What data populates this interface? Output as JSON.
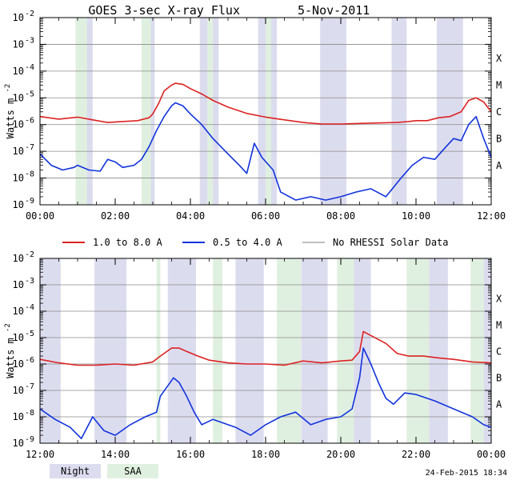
{
  "title": "GOES 3-sec X-ray Flux",
  "date": "5-Nov-2011",
  "footer_timestamp": "24-Feb-2015 18:34",
  "ylabel": "Watts m",
  "ylabel_exp": "-2",
  "legend": {
    "long": "1.0 to 8.0 A",
    "short": "0.5 to 4.0 A",
    "rhessi": "No RHESSI Solar Data"
  },
  "shade_legend": {
    "night": "Night",
    "saa": "SAA"
  },
  "colors": {
    "long": "#dd2222",
    "short": "#1133dd",
    "rhessi": "#999999",
    "night": "#dcdcef",
    "saa": "#e0f0e0",
    "grid": "#8a8a8a"
  },
  "chart_data": [
    {
      "type": "line",
      "x_unit": "hours UT",
      "xlim": [
        0,
        12
      ],
      "ylim": [
        1e-09,
        0.01
      ],
      "yscale": "log",
      "x_tick_labels": [
        "00:00",
        "02:00",
        "04:00",
        "06:00",
        "08:00",
        "10:00",
        "12:00"
      ],
      "y_tick_exponents": [
        "-9",
        "-8",
        "-7",
        "-6",
        "-5",
        "-4",
        "-3",
        "-2"
      ],
      "class_labels": [
        "A",
        "B",
        "C",
        "M",
        "X"
      ],
      "grid": "horizontal",
      "night_intervals": [
        [
          0.95,
          1.4
        ],
        [
          2.7,
          3.05
        ],
        [
          4.25,
          4.75
        ],
        [
          5.8,
          6.3
        ],
        [
          7.45,
          8.15
        ],
        [
          9.35,
          9.75
        ],
        [
          10.55,
          11.25
        ]
      ],
      "saa_intervals": [
        [
          0.95,
          1.25
        ],
        [
          2.7,
          2.95
        ],
        [
          4.45,
          4.6
        ],
        [
          6.0,
          6.15
        ]
      ],
      "series": [
        {
          "key": "long",
          "points": [
            [
              0,
              2e-06
            ],
            [
              0.5,
              1.6e-06
            ],
            [
              1.0,
              1.9e-06
            ],
            [
              1.4,
              1.5e-06
            ],
            [
              1.8,
              1.2e-06
            ],
            [
              2.2,
              1.3e-06
            ],
            [
              2.6,
              1.4e-06
            ],
            [
              2.9,
              1.8e-06
            ],
            [
              3.0,
              2.5e-06
            ],
            [
              3.15,
              6e-06
            ],
            [
              3.3,
              1.8e-05
            ],
            [
              3.5,
              3e-05
            ],
            [
              3.6,
              3.5e-05
            ],
            [
              3.8,
              3.2e-05
            ],
            [
              4.0,
              2.2e-05
            ],
            [
              4.3,
              1.4e-05
            ],
            [
              4.6,
              8e-06
            ],
            [
              5.0,
              4.5e-06
            ],
            [
              5.5,
              2.6e-06
            ],
            [
              6.0,
              1.9e-06
            ],
            [
              6.5,
              1.5e-06
            ],
            [
              7.0,
              1.2e-06
            ],
            [
              7.5,
              1.05e-06
            ],
            [
              8.0,
              1.05e-06
            ],
            [
              8.5,
              1.1e-06
            ],
            [
              9.0,
              1.15e-06
            ],
            [
              9.5,
              1.2e-06
            ],
            [
              9.8,
              1.3e-06
            ],
            [
              10.0,
              1.4e-06
            ],
            [
              10.3,
              1.4e-06
            ],
            [
              10.6,
              1.8e-06
            ],
            [
              10.9,
              2e-06
            ],
            [
              11.2,
              3e-06
            ],
            [
              11.4,
              8e-06
            ],
            [
              11.6,
              1e-05
            ],
            [
              11.8,
              7e-06
            ],
            [
              12.0,
              3e-06
            ]
          ]
        },
        {
          "key": "short",
          "points": [
            [
              0,
              8e-08
            ],
            [
              0.3,
              3e-08
            ],
            [
              0.6,
              2e-08
            ],
            [
              0.9,
              2.5e-08
            ],
            [
              1.0,
              3e-08
            ],
            [
              1.3,
              2e-08
            ],
            [
              1.6,
              1.8e-08
            ],
            [
              1.8,
              5e-08
            ],
            [
              2.0,
              4e-08
            ],
            [
              2.2,
              2.5e-08
            ],
            [
              2.5,
              3e-08
            ],
            [
              2.7,
              5e-08
            ],
            [
              2.9,
              1.5e-07
            ],
            [
              3.1,
              6e-07
            ],
            [
              3.3,
              2e-06
            ],
            [
              3.5,
              5e-06
            ],
            [
              3.6,
              6.5e-06
            ],
            [
              3.8,
              5e-06
            ],
            [
              4.0,
              2.5e-06
            ],
            [
              4.3,
              1e-06
            ],
            [
              4.6,
              3e-07
            ],
            [
              5.0,
              8e-08
            ],
            [
              5.3,
              3e-08
            ],
            [
              5.5,
              1.5e-08
            ],
            [
              5.7,
              2e-07
            ],
            [
              5.9,
              6e-08
            ],
            [
              6.2,
              2e-08
            ],
            [
              6.4,
              3e-09
            ],
            [
              6.8,
              1.5e-09
            ],
            [
              7.2,
              2e-09
            ],
            [
              7.6,
              1.5e-09
            ],
            [
              8.0,
              2e-09
            ],
            [
              8.4,
              3e-09
            ],
            [
              8.8,
              4e-09
            ],
            [
              9.2,
              2e-09
            ],
            [
              9.6,
              1e-08
            ],
            [
              9.9,
              3e-08
            ],
            [
              10.2,
              6e-08
            ],
            [
              10.5,
              5e-08
            ],
            [
              10.8,
              1.5e-07
            ],
            [
              11.0,
              3e-07
            ],
            [
              11.2,
              2.5e-07
            ],
            [
              11.4,
              1e-06
            ],
            [
              11.6,
              2e-06
            ],
            [
              11.8,
              3e-07
            ],
            [
              12.0,
              6e-08
            ]
          ]
        }
      ]
    },
    {
      "type": "line",
      "x_unit": "hours UT",
      "xlim": [
        12,
        24
      ],
      "ylim": [
        1e-09,
        0.01
      ],
      "yscale": "log",
      "x_tick_labels": [
        "12:00",
        "14:00",
        "16:00",
        "18:00",
        "20:00",
        "22:00",
        "00:00"
      ],
      "y_tick_exponents": [
        "-9",
        "-8",
        "-7",
        "-6",
        "-5",
        "-4",
        "-3",
        "-2"
      ],
      "class_labels": [
        "A",
        "B",
        "C",
        "M",
        "X"
      ],
      "grid": "horizontal",
      "night_intervals": [
        [
          12.0,
          12.55
        ],
        [
          13.45,
          14.3
        ],
        [
          15.4,
          16.15
        ],
        [
          17.2,
          17.95
        ],
        [
          18.95,
          19.65
        ],
        [
          20.2,
          20.8
        ],
        [
          22.35,
          22.85
        ],
        [
          23.8,
          24.0
        ]
      ],
      "saa_intervals": [
        [
          15.1,
          15.2
        ],
        [
          16.6,
          16.85
        ],
        [
          18.3,
          18.95
        ],
        [
          19.9,
          20.35
        ],
        [
          21.75,
          22.35
        ],
        [
          23.45,
          23.8
        ]
      ],
      "series": [
        {
          "key": "long",
          "points": [
            [
              12.0,
              1.5e-06
            ],
            [
              12.5,
              1.1e-06
            ],
            [
              13.0,
              9e-07
            ],
            [
              13.5,
              9e-07
            ],
            [
              14.0,
              1e-06
            ],
            [
              14.5,
              9e-07
            ],
            [
              15.0,
              1.2e-06
            ],
            [
              15.2,
              2e-06
            ],
            [
              15.5,
              4e-06
            ],
            [
              15.7,
              4e-06
            ],
            [
              15.9,
              3e-06
            ],
            [
              16.2,
              2e-06
            ],
            [
              16.5,
              1.4e-06
            ],
            [
              17.0,
              1.1e-06
            ],
            [
              17.5,
              1e-06
            ],
            [
              18.0,
              1e-06
            ],
            [
              18.5,
              9e-07
            ],
            [
              19.0,
              1.3e-06
            ],
            [
              19.5,
              1.1e-06
            ],
            [
              20.0,
              1.3e-06
            ],
            [
              20.3,
              1.4e-06
            ],
            [
              20.5,
              3e-06
            ],
            [
              20.6,
              1.7e-05
            ],
            [
              20.8,
              1.2e-05
            ],
            [
              21.2,
              6e-06
            ],
            [
              21.5,
              2.5e-06
            ],
            [
              21.8,
              2e-06
            ],
            [
              22.2,
              2e-06
            ],
            [
              22.6,
              1.7e-06
            ],
            [
              23.0,
              1.5e-06
            ],
            [
              23.5,
              1.2e-06
            ],
            [
              24.0,
              1.1e-06
            ]
          ]
        },
        {
          "key": "short",
          "points": [
            [
              12.0,
              2e-08
            ],
            [
              12.4,
              8e-09
            ],
            [
              12.8,
              4e-09
            ],
            [
              13.1,
              1.5e-09
            ],
            [
              13.4,
              1e-08
            ],
            [
              13.7,
              3e-09
            ],
            [
              14.0,
              2e-09
            ],
            [
              14.4,
              5e-09
            ],
            [
              14.8,
              1e-08
            ],
            [
              15.1,
              1.5e-08
            ],
            [
              15.2,
              6e-08
            ],
            [
              15.4,
              1.5e-07
            ],
            [
              15.55,
              3e-07
            ],
            [
              15.7,
              2e-07
            ],
            [
              15.9,
              6e-08
            ],
            [
              16.1,
              1.5e-08
            ],
            [
              16.3,
              5e-09
            ],
            [
              16.6,
              8e-09
            ],
            [
              17.2,
              4e-09
            ],
            [
              17.6,
              2e-09
            ],
            [
              18.0,
              5e-09
            ],
            [
              18.4,
              1e-08
            ],
            [
              18.8,
              1.5e-08
            ],
            [
              19.2,
              5e-09
            ],
            [
              19.6,
              8e-09
            ],
            [
              20.0,
              1e-08
            ],
            [
              20.3,
              2e-08
            ],
            [
              20.5,
              3e-07
            ],
            [
              20.6,
              4e-06
            ],
            [
              20.8,
              1e-06
            ],
            [
              21.0,
              2e-07
            ],
            [
              21.2,
              5e-08
            ],
            [
              21.4,
              3e-08
            ],
            [
              21.7,
              8e-08
            ],
            [
              22.0,
              7e-08
            ],
            [
              22.5,
              4e-08
            ],
            [
              23.0,
              2e-08
            ],
            [
              23.5,
              1e-08
            ],
            [
              23.8,
              5e-09
            ],
            [
              24.0,
              4e-09
            ]
          ]
        }
      ]
    }
  ]
}
